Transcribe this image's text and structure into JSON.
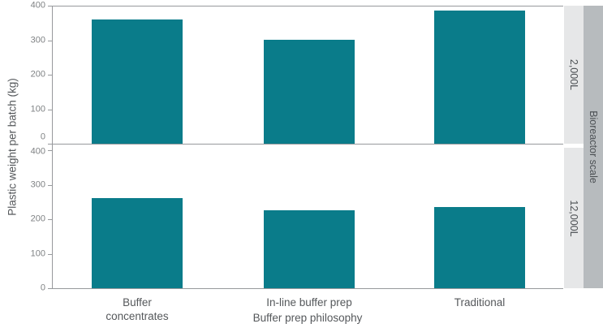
{
  "chart_data": {
    "type": "bar",
    "title": "",
    "ylabel": "Plastic weight per batch (kg)",
    "xlabel": "Buffer prep philosophy",
    "categories": [
      "Buffer\nconcentrates",
      "In-line buffer prep",
      "Traditional"
    ],
    "y_ticks": [
      0,
      100,
      200,
      300,
      400
    ],
    "ylim": [
      0,
      400
    ],
    "grid": false,
    "legend": false,
    "bar_color": "#0a7c8a",
    "facet": {
      "title": "Bioreactor scale",
      "strip_position": "right"
    },
    "panels": [
      {
        "facet_label": "2,000L",
        "values": [
          360,
          300,
          385
        ]
      },
      {
        "facet_label": "12,000L",
        "values": [
          260,
          225,
          235
        ]
      }
    ]
  },
  "colors": {
    "bar": "#0a7c8a",
    "axis_line": "#97999c",
    "tick_text": "#7f8284",
    "label_text": "#55585b",
    "strip_inner_bg": "#e6e7e8",
    "strip_outer_bg": "#b7bbbe",
    "strip_text": "#4c5054",
    "background": "#ffffff"
  }
}
